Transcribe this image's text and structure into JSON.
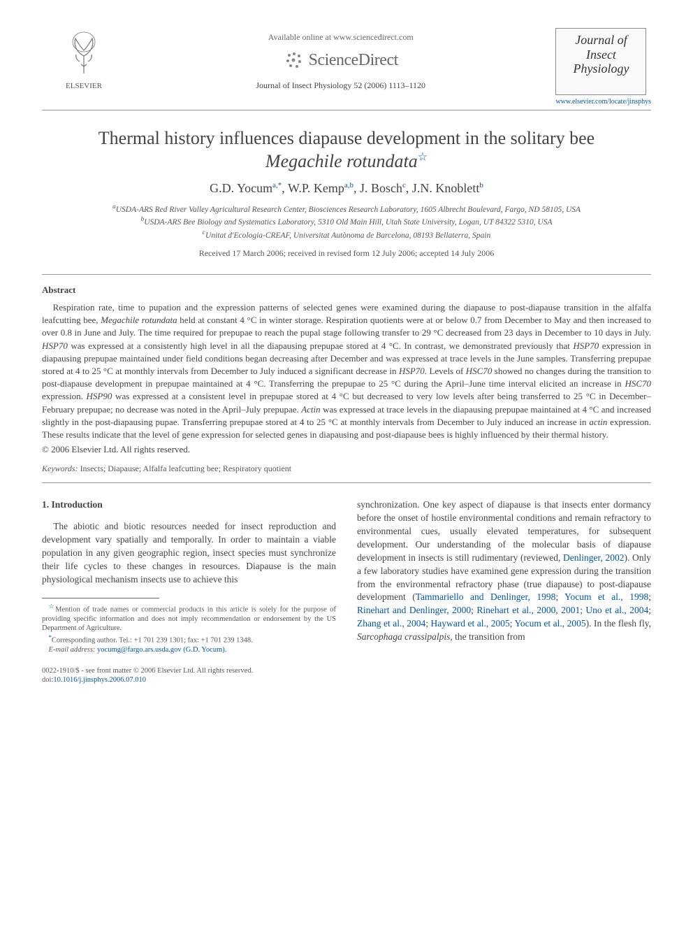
{
  "header": {
    "publisher_name": "ELSEVIER",
    "available_text": "Available online at www.sciencedirect.com",
    "sciencedirect_label": "ScienceDirect",
    "journal_reference": "Journal of Insect Physiology 52 (2006) 1113–1120",
    "journal_cover_title": "Journal of Insect Physiology",
    "journal_url": "www.elsevier.com/locate/jinsphys"
  },
  "article": {
    "title_pre": "Thermal history influences diapause development in the solitary bee ",
    "title_species": "Megachile rotundata",
    "authors_html": "G.D. Yocum",
    "authors": [
      {
        "name": "G.D. Yocum",
        "sup": "a,*"
      },
      {
        "name": "W.P. Kemp",
        "sup": "a,b"
      },
      {
        "name": "J. Bosch",
        "sup": "c"
      },
      {
        "name": "J.N. Knoblett",
        "sup": "b"
      }
    ],
    "affiliations": [
      {
        "sup": "a",
        "text": "USDA-ARS Red River Valley Agricultural Research Center, Biosciences Research Laboratory, 1605 Albrecht Boulevard, Fargo, ND 58105, USA"
      },
      {
        "sup": "b",
        "text": "USDA-ARS Bee Biology and Systematics Laboratory, 5310 Old Main Hill, Utah State University, Logan, UT 84322 5310, USA"
      },
      {
        "sup": "c",
        "text": "Unitat d'Ecologia-CREAF, Universitat Autònoma de Barcelona, 08193 Bellaterra, Spain"
      }
    ],
    "received": "Received 17 March 2006; received in revised form 12 July 2006; accepted 14 July 2006"
  },
  "abstract": {
    "heading": "Abstract",
    "body": "Respiration rate, time to pupation and the expression patterns of selected genes were examined during the diapause to post-diapause transition in the alfalfa leafcutting bee, <i>Megachile rotundata</i> held at constant 4 °C in winter storage. Respiration quotients were at or below 0.7 from December to May and then increased to over 0.8 in June and July. The time required for prepupae to reach the pupal stage following transfer to 29 °C decreased from 23 days in December to 10 days in July. <i>HSP70</i> was expressed at a consistently high level in all the diapausing prepupae stored at 4 °C. In contrast, we demonstrated previously that <i>HSP70</i> expression in diapausing prepupae maintained under field conditions began decreasing after December and was expressed at trace levels in the June samples. Transferring prepupae stored at 4 to 25 °C at monthly intervals from December to July induced a significant decrease in <i>HSP70</i>. Levels of <i>HSC70</i> showed no changes during the transition to post-diapause development in prepupae maintained at 4 °C. Transferring the prepupae to 25 °C during the April–June time interval elicited an increase in <i>HSC70</i> expression. <i>HSP90</i> was expressed at a consistent level in prepupae stored at 4 °C but decreased to very low levels after being transferred to 25 °C in December–February prepupae; no decrease was noted in the April–July prepupae. <i>Actin</i> was expressed at trace levels in the diapausing prepupae maintained at 4 °C and increased slightly in the post-diapausing pupae. Transferring prepupae stored at 4 to 25 °C at monthly intervals from December to July induced an increase in <i>actin</i> expression. These results indicate that the level of gene expression for selected genes in diapausing and post-diapause bees is highly influenced by their thermal history.",
    "copyright": "© 2006 Elsevier Ltd. All rights reserved.",
    "keywords_label": "Keywords:",
    "keywords_text": " Insects; Diapause; Alfalfa leafcutting bee; Respiratory quotient"
  },
  "introduction": {
    "heading": "1. Introduction",
    "col1": "The abiotic and biotic resources needed for insect reproduction and development vary spatially and temporally. In order to maintain a viable population in any given geographic region, insect species must synchronize their life cycles to these changes in resources. Diapause is the main physiological mechanism insects use to achieve this",
    "col2_part1": "synchronization. One key aspect of diapause is that insects enter dormancy before the onset of hostile environmental conditions and remain refractory to environmental cues, usually elevated temperatures, for subsequent development. Our understanding of the molecular basis of diapause development in insects is still rudimentary (reviewed, ",
    "col2_cite1": "Denlinger, 2002",
    "col2_part2": "). Only a few laboratory studies have examined gene expression during the transition from the environmental refractory phase (true diapause) to post-diapause development (",
    "col2_cite2": "Tammariello and Denlinger, 1998",
    "col2_sep1": "; ",
    "col2_cite3": "Yocum et al., 1998",
    "col2_sep2": "; ",
    "col2_cite4": "Rinehart and Denlinger, 2000",
    "col2_sep3": "; ",
    "col2_cite5": "Rinehart et al., 2000, 2001",
    "col2_sep4": "; ",
    "col2_cite6": "Uno et al., 2004",
    "col2_sep5": "; ",
    "col2_cite7": "Zhang et al., 2004",
    "col2_sep6": "; ",
    "col2_cite8": "Hayward et al., 2005",
    "col2_sep7": "; ",
    "col2_cite9": "Yocum et al., 2005",
    "col2_part3": "). In the flesh fly, <i>Sarcophaga crassipalpis</i>, the transition from"
  },
  "footnotes": {
    "note_star": "Mention of trade names or commercial products in this article is solely for the purpose of providing specific information and does not imply recommendation or endorsement by the US Department of Agriculture.",
    "note_corr_label": "*",
    "note_corr": "Corresponding author. Tel.: +1 701 239 1301; fax: +1 701 239 1348.",
    "email_label": "E-mail address:",
    "email": " yocumg@fargo.ars.usda.gov (G.D. Yocum)."
  },
  "bottom": {
    "issn_line": "0022-1910/$ - see front matter © 2006 Elsevier Ltd. All rights reserved.",
    "doi_label": "doi:",
    "doi": "10.1016/j.jinsphys.2006.07.010"
  },
  "colors": {
    "link": "#0055aa",
    "text": "#444444",
    "rule": "#999999"
  }
}
